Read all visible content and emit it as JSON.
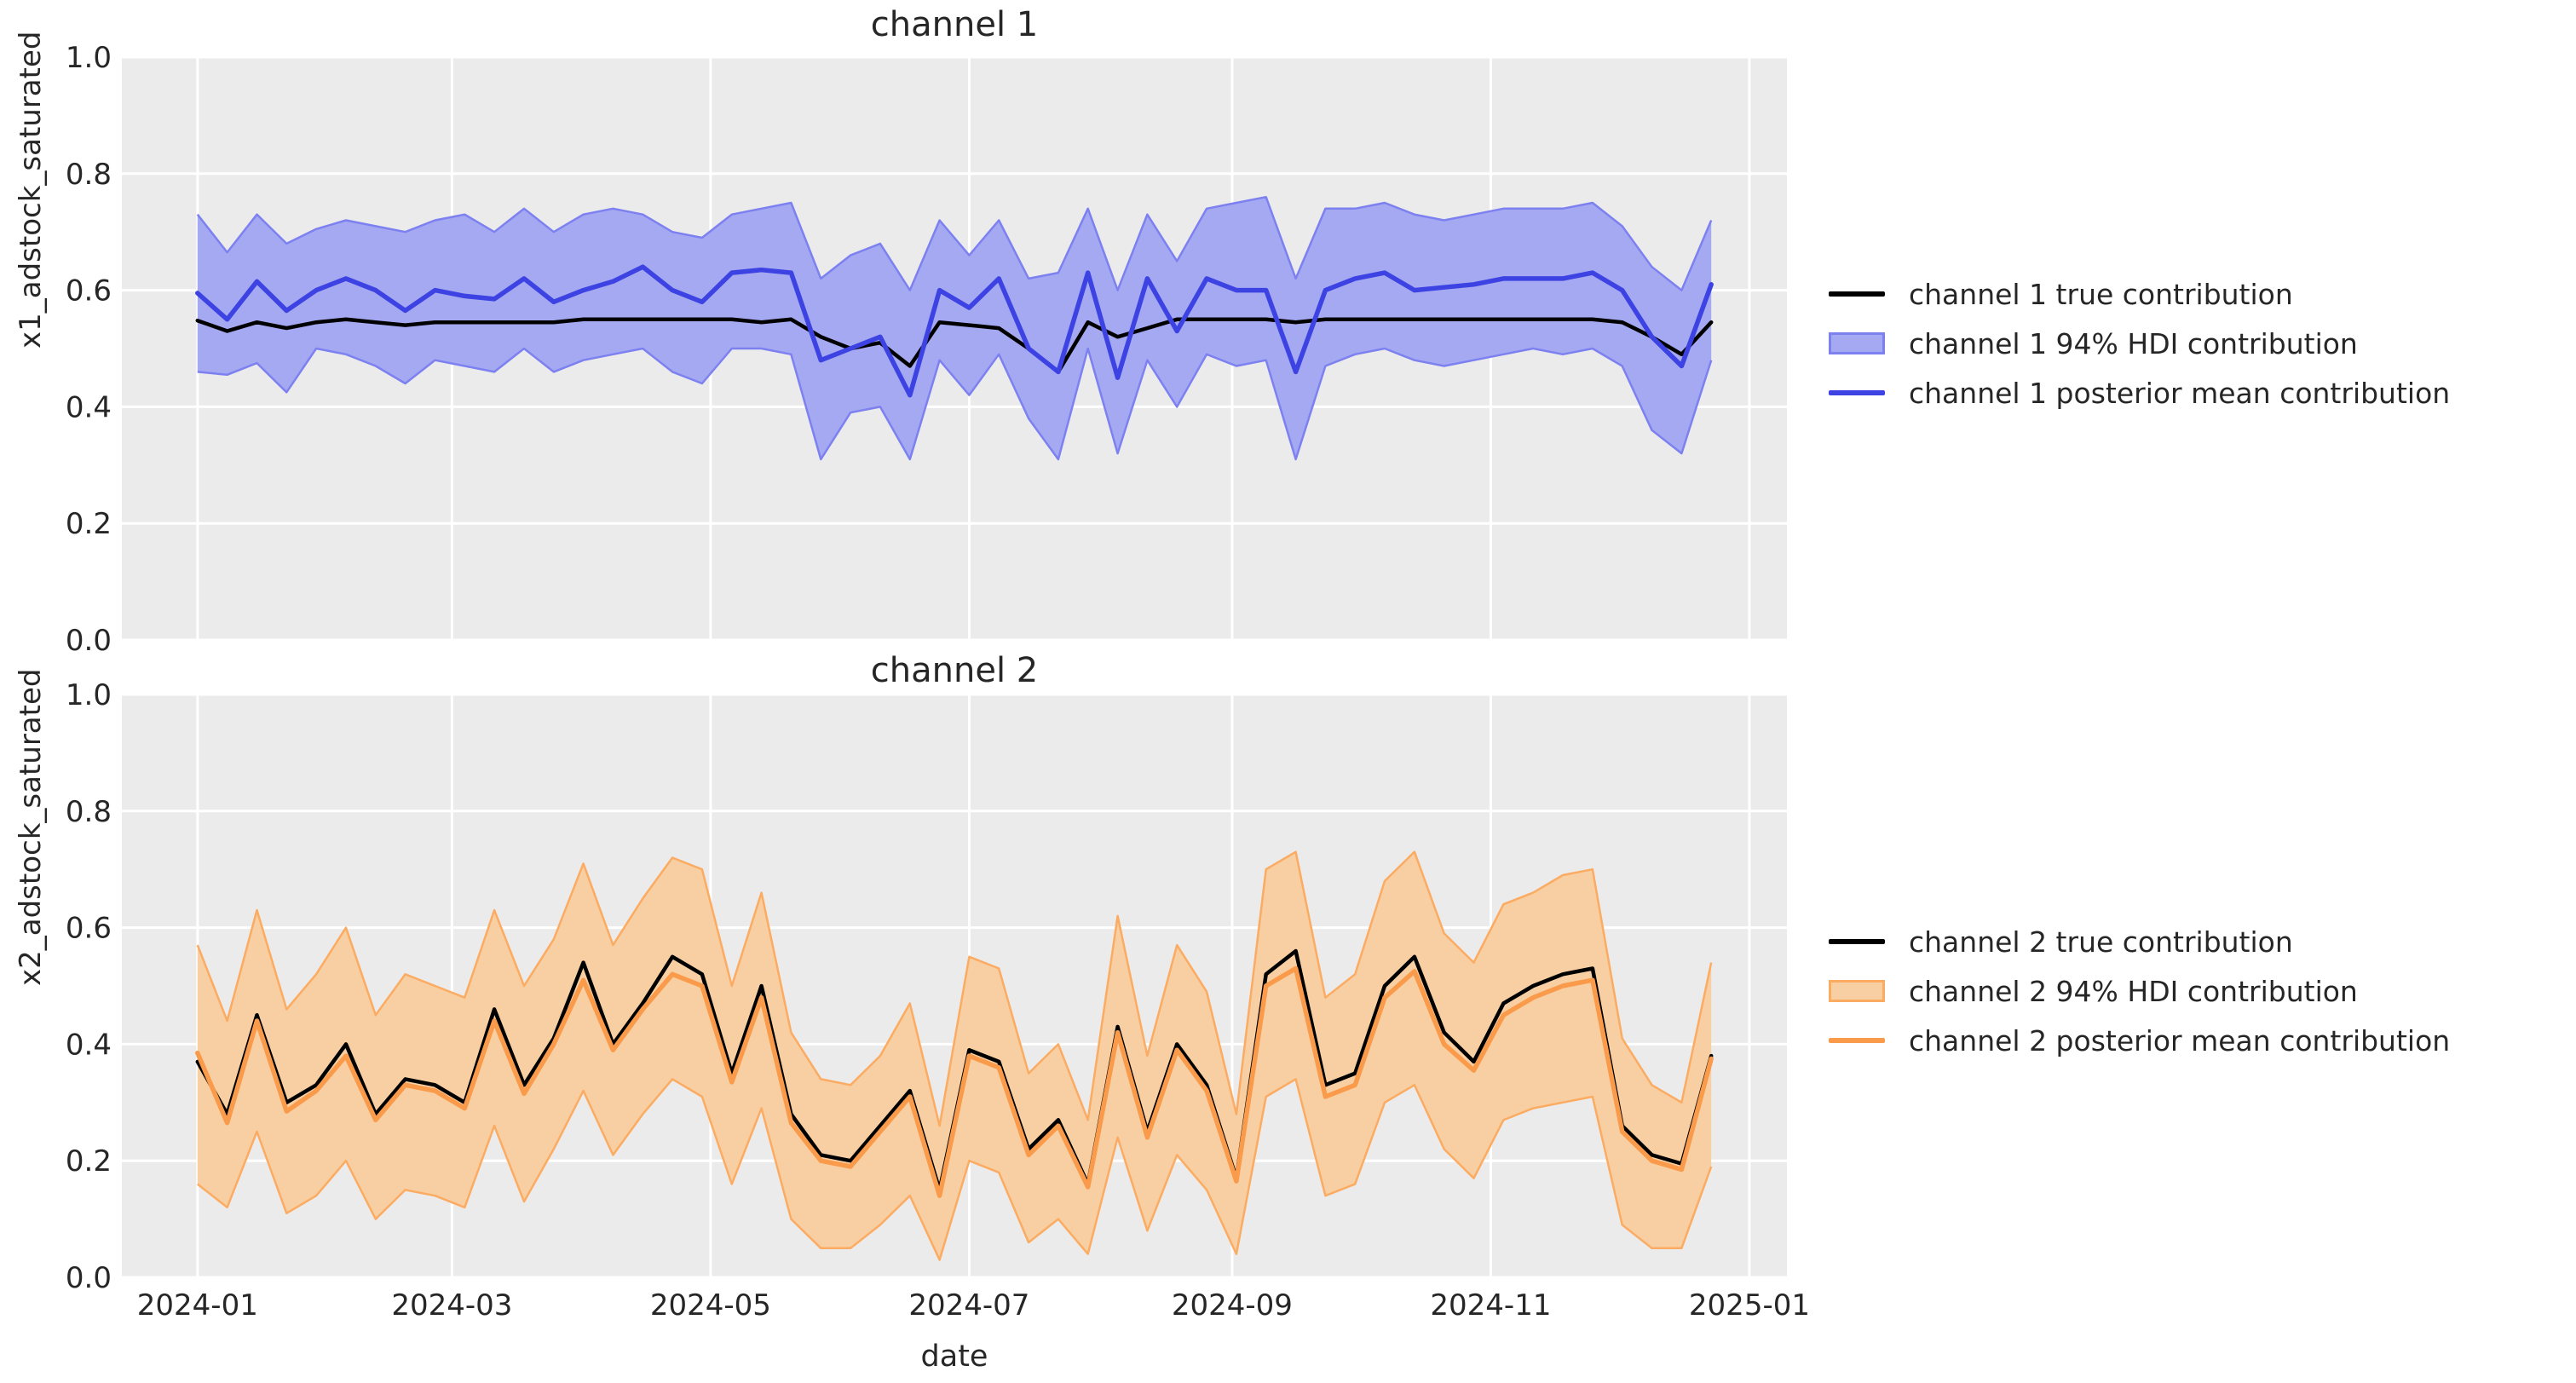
{
  "figure": {
    "background": "#ffffff",
    "axes_background": "#ebebeb",
    "grid_color": "#ffffff",
    "text_color": "#262626"
  },
  "axis_ticks": {
    "y_labels": [
      "0.0",
      "0.2",
      "0.4",
      "0.6",
      "0.8",
      "1.0"
    ],
    "y_values": [
      0.0,
      0.2,
      0.4,
      0.6,
      0.8,
      1.0
    ],
    "x_labels": [
      "2024-01",
      "2024-03",
      "2024-05",
      "2024-07",
      "2024-09",
      "2024-11",
      "2025-01"
    ],
    "x_dates": [
      "2024-01-01",
      "2024-03-01",
      "2024-05-01",
      "2024-07-01",
      "2024-09-01",
      "2024-11-01",
      "2025-01-01"
    ]
  },
  "chart_data": [
    {
      "type": "line",
      "title": "channel 1",
      "ylabel": "x1_adstock_saturated",
      "xlabel": "",
      "ylim": [
        0.0,
        1.0
      ],
      "grid": true,
      "legend_position": "right",
      "x_dates": [
        "2024-01-01",
        "2024-01-08",
        "2024-01-15",
        "2024-01-22",
        "2024-01-29",
        "2024-02-05",
        "2024-02-12",
        "2024-02-19",
        "2024-02-26",
        "2024-03-04",
        "2024-03-11",
        "2024-03-18",
        "2024-03-25",
        "2024-04-01",
        "2024-04-08",
        "2024-04-15",
        "2024-04-22",
        "2024-04-29",
        "2024-05-06",
        "2024-05-13",
        "2024-05-20",
        "2024-05-27",
        "2024-06-03",
        "2024-06-10",
        "2024-06-17",
        "2024-06-24",
        "2024-07-01",
        "2024-07-08",
        "2024-07-15",
        "2024-07-22",
        "2024-07-29",
        "2024-08-05",
        "2024-08-12",
        "2024-08-19",
        "2024-08-26",
        "2024-09-02",
        "2024-09-09",
        "2024-09-16",
        "2024-09-23",
        "2024-09-30",
        "2024-10-07",
        "2024-10-14",
        "2024-10-21",
        "2024-10-28",
        "2024-11-04",
        "2024-11-11",
        "2024-11-18",
        "2024-11-25",
        "2024-12-02",
        "2024-12-09",
        "2024-12-16",
        "2024-12-23"
      ],
      "series": [
        {
          "name": "channel 1 true contribution",
          "type": "line",
          "color": "#000000",
          "values": [
            0.548,
            0.53,
            0.545,
            0.535,
            0.545,
            0.55,
            0.545,
            0.54,
            0.545,
            0.545,
            0.545,
            0.545,
            0.545,
            0.55,
            0.55,
            0.55,
            0.55,
            0.55,
            0.55,
            0.545,
            0.55,
            0.52,
            0.5,
            0.51,
            0.47,
            0.545,
            0.54,
            0.535,
            0.5,
            0.46,
            0.545,
            0.52,
            0.535,
            0.55,
            0.55,
            0.55,
            0.55,
            0.545,
            0.55,
            0.55,
            0.55,
            0.55,
            0.55,
            0.55,
            0.55,
            0.55,
            0.55,
            0.55,
            0.545,
            0.52,
            0.49,
            0.545
          ]
        },
        {
          "name": "channel 1 94% HDI contribution",
          "type": "band",
          "fill": "#a5a9f2",
          "edge": "#7d81f0",
          "upper": [
            0.73,
            0.665,
            0.73,
            0.68,
            0.705,
            0.72,
            0.71,
            0.7,
            0.72,
            0.73,
            0.7,
            0.74,
            0.7,
            0.73,
            0.74,
            0.73,
            0.7,
            0.69,
            0.73,
            0.74,
            0.75,
            0.62,
            0.66,
            0.68,
            0.6,
            0.72,
            0.66,
            0.72,
            0.62,
            0.63,
            0.74,
            0.6,
            0.73,
            0.65,
            0.74,
            0.75,
            0.76,
            0.62,
            0.74,
            0.74,
            0.75,
            0.73,
            0.72,
            0.73,
            0.74,
            0.74,
            0.74,
            0.75,
            0.71,
            0.64,
            0.6,
            0.72
          ],
          "lower": [
            0.46,
            0.455,
            0.475,
            0.425,
            0.5,
            0.49,
            0.47,
            0.44,
            0.48,
            0.47,
            0.46,
            0.5,
            0.46,
            0.48,
            0.49,
            0.5,
            0.46,
            0.44,
            0.5,
            0.5,
            0.49,
            0.31,
            0.39,
            0.4,
            0.31,
            0.48,
            0.42,
            0.49,
            0.38,
            0.31,
            0.5,
            0.32,
            0.48,
            0.4,
            0.49,
            0.47,
            0.48,
            0.31,
            0.47,
            0.49,
            0.5,
            0.48,
            0.47,
            0.48,
            0.49,
            0.5,
            0.49,
            0.5,
            0.47,
            0.36,
            0.32,
            0.48
          ]
        },
        {
          "name": "channel 1 posterior mean contribution",
          "type": "line",
          "color": "#3d42e3",
          "values": [
            0.595,
            0.55,
            0.615,
            0.565,
            0.6,
            0.62,
            0.6,
            0.565,
            0.6,
            0.59,
            0.585,
            0.62,
            0.58,
            0.6,
            0.615,
            0.64,
            0.6,
            0.58,
            0.63,
            0.635,
            0.63,
            0.48,
            0.5,
            0.52,
            0.42,
            0.6,
            0.57,
            0.62,
            0.5,
            0.46,
            0.63,
            0.45,
            0.62,
            0.53,
            0.62,
            0.6,
            0.6,
            0.46,
            0.6,
            0.62,
            0.63,
            0.6,
            0.605,
            0.61,
            0.62,
            0.62,
            0.62,
            0.63,
            0.6,
            0.52,
            0.47,
            0.61
          ]
        }
      ]
    },
    {
      "type": "line",
      "title": "channel 2",
      "ylabel": "x2_adstock_saturated",
      "xlabel": "date",
      "ylim": [
        0.0,
        1.0
      ],
      "grid": true,
      "legend_position": "right",
      "x_dates": [
        "2024-01-01",
        "2024-01-08",
        "2024-01-15",
        "2024-01-22",
        "2024-01-29",
        "2024-02-05",
        "2024-02-12",
        "2024-02-19",
        "2024-02-26",
        "2024-03-04",
        "2024-03-11",
        "2024-03-18",
        "2024-03-25",
        "2024-04-01",
        "2024-04-08",
        "2024-04-15",
        "2024-04-22",
        "2024-04-29",
        "2024-05-06",
        "2024-05-13",
        "2024-05-20",
        "2024-05-27",
        "2024-06-03",
        "2024-06-10",
        "2024-06-17",
        "2024-06-24",
        "2024-07-01",
        "2024-07-08",
        "2024-07-15",
        "2024-07-22",
        "2024-07-29",
        "2024-08-05",
        "2024-08-12",
        "2024-08-19",
        "2024-08-26",
        "2024-09-02",
        "2024-09-09",
        "2024-09-16",
        "2024-09-23",
        "2024-09-30",
        "2024-10-07",
        "2024-10-14",
        "2024-10-21",
        "2024-10-28",
        "2024-11-04",
        "2024-11-11",
        "2024-11-18",
        "2024-11-25",
        "2024-12-02",
        "2024-12-09",
        "2024-12-16",
        "2024-12-23"
      ],
      "series": [
        {
          "name": "channel 2 true contribution",
          "type": "line",
          "color": "#000000",
          "values": [
            0.37,
            0.28,
            0.45,
            0.3,
            0.33,
            0.4,
            0.28,
            0.34,
            0.33,
            0.3,
            0.46,
            0.33,
            0.41,
            0.54,
            0.4,
            0.47,
            0.55,
            0.52,
            0.35,
            0.5,
            0.28,
            0.21,
            0.2,
            0.26,
            0.32,
            0.15,
            0.39,
            0.37,
            0.22,
            0.27,
            0.16,
            0.43,
            0.25,
            0.4,
            0.33,
            0.17,
            0.52,
            0.56,
            0.33,
            0.35,
            0.5,
            0.55,
            0.42,
            0.37,
            0.47,
            0.5,
            0.52,
            0.53,
            0.26,
            0.21,
            0.195,
            0.38
          ]
        },
        {
          "name": "channel 2 94% HDI contribution",
          "type": "band",
          "fill": "#f8cfa2",
          "edge": "#fbab62",
          "upper": [
            0.57,
            0.44,
            0.63,
            0.46,
            0.52,
            0.6,
            0.45,
            0.52,
            0.5,
            0.48,
            0.63,
            0.5,
            0.58,
            0.71,
            0.57,
            0.65,
            0.72,
            0.7,
            0.5,
            0.66,
            0.42,
            0.34,
            0.33,
            0.38,
            0.47,
            0.26,
            0.55,
            0.53,
            0.35,
            0.4,
            0.27,
            0.62,
            0.38,
            0.57,
            0.49,
            0.28,
            0.7,
            0.73,
            0.48,
            0.52,
            0.68,
            0.73,
            0.59,
            0.54,
            0.64,
            0.66,
            0.69,
            0.7,
            0.41,
            0.33,
            0.3,
            0.54
          ],
          "lower": [
            0.16,
            0.12,
            0.25,
            0.11,
            0.14,
            0.2,
            0.1,
            0.15,
            0.14,
            0.12,
            0.26,
            0.13,
            0.22,
            0.32,
            0.21,
            0.28,
            0.34,
            0.31,
            0.16,
            0.29,
            0.1,
            0.05,
            0.05,
            0.09,
            0.14,
            0.03,
            0.2,
            0.18,
            0.06,
            0.1,
            0.04,
            0.24,
            0.08,
            0.21,
            0.15,
            0.04,
            0.31,
            0.34,
            0.14,
            0.16,
            0.3,
            0.33,
            0.22,
            0.17,
            0.27,
            0.29,
            0.3,
            0.31,
            0.09,
            0.05,
            0.05,
            0.19
          ]
        },
        {
          "name": "channel 2 posterior mean contribution",
          "type": "line",
          "color": "#fa9b4b",
          "values": [
            0.385,
            0.265,
            0.44,
            0.285,
            0.32,
            0.38,
            0.27,
            0.33,
            0.32,
            0.29,
            0.44,
            0.315,
            0.4,
            0.51,
            0.39,
            0.46,
            0.52,
            0.5,
            0.335,
            0.48,
            0.265,
            0.2,
            0.19,
            0.25,
            0.31,
            0.14,
            0.38,
            0.36,
            0.21,
            0.26,
            0.155,
            0.42,
            0.24,
            0.39,
            0.32,
            0.165,
            0.5,
            0.53,
            0.31,
            0.33,
            0.48,
            0.525,
            0.4,
            0.355,
            0.45,
            0.48,
            0.5,
            0.51,
            0.25,
            0.2,
            0.185,
            0.375
          ]
        }
      ]
    }
  ]
}
